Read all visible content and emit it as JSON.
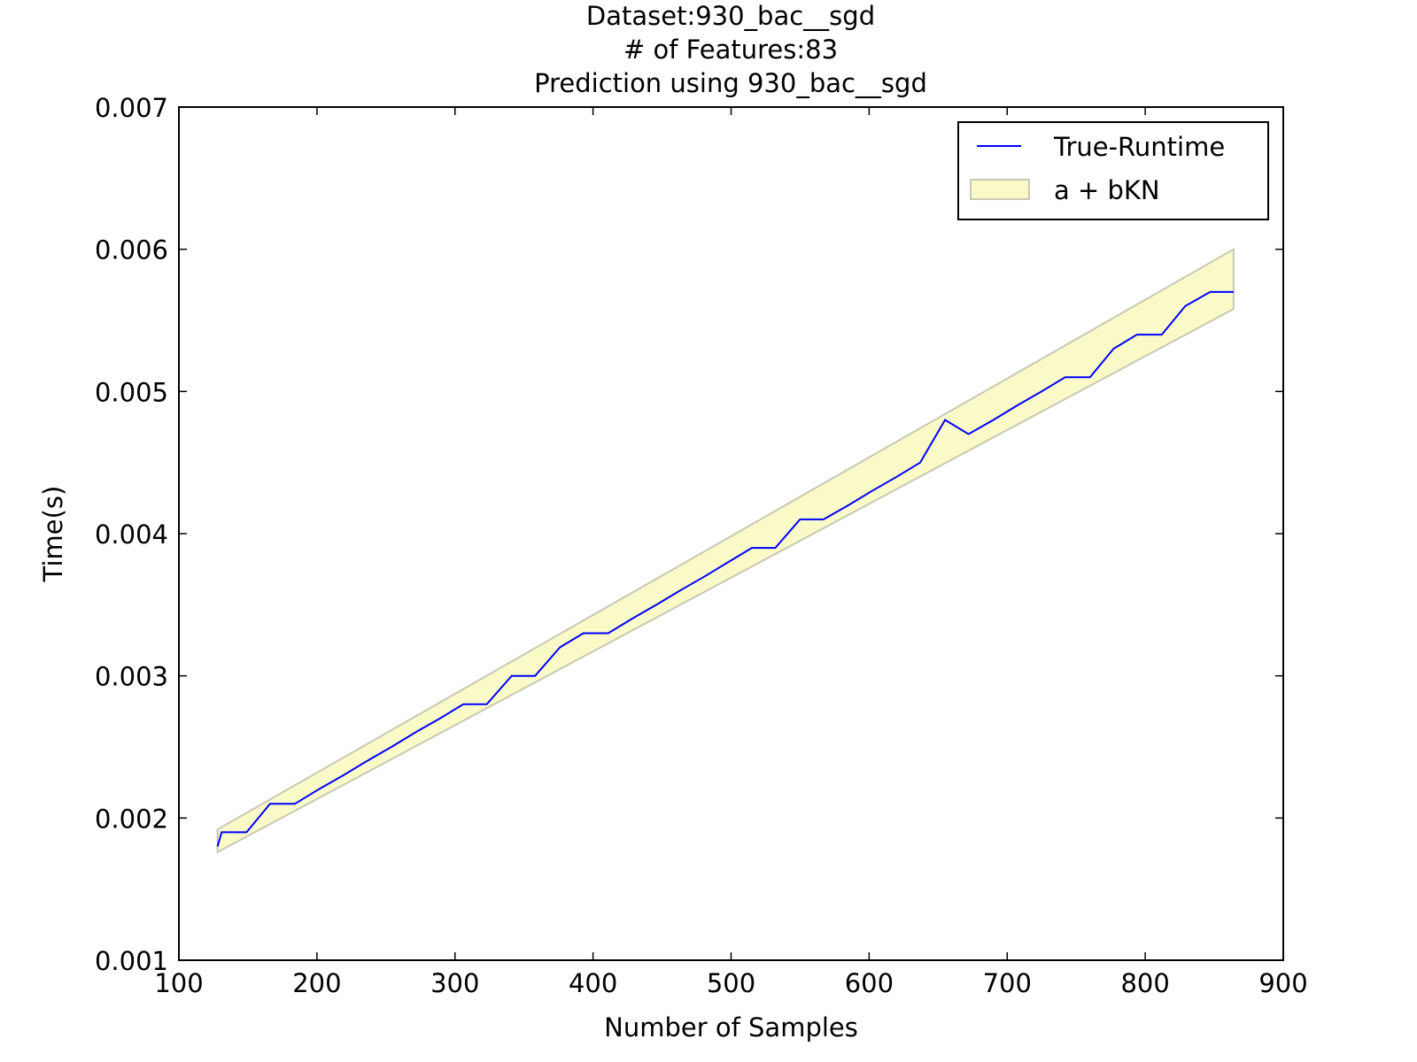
{
  "chart_data": {
    "type": "line",
    "title": [
      "Dataset:930_bac__sgd",
      "# of Features:83",
      "Prediction using 930_bac__sgd"
    ],
    "xlabel": "Number of Samples",
    "ylabel": "Time(s)",
    "xlim": [
      100,
      900
    ],
    "ylim": [
      0.001,
      0.007
    ],
    "xticks": [
      100,
      200,
      300,
      400,
      500,
      600,
      700,
      800,
      900
    ],
    "xtick_labels": [
      "100",
      "200",
      "300",
      "400",
      "500",
      "600",
      "700",
      "800",
      "900"
    ],
    "yticks": [
      0.001,
      0.002,
      0.003,
      0.004,
      0.005,
      0.006,
      0.007
    ],
    "ytick_labels": [
      "0.001",
      "0.002",
      "0.003",
      "0.004",
      "0.005",
      "0.006",
      "0.007"
    ],
    "grid": false,
    "legend_position": "top-right",
    "series": [
      {
        "name": "True-Runtime",
        "kind": "line",
        "color": "#0000ff",
        "x": [
          128,
          131,
          149,
          166,
          184,
          201,
          219,
          236,
          254,
          271,
          289,
          306,
          323,
          341,
          358,
          376,
          393,
          411,
          428,
          446,
          463,
          481,
          498,
          515,
          532,
          550,
          567,
          585,
          602,
          620,
          637,
          655,
          672,
          690,
          707,
          725,
          742,
          760,
          777,
          794,
          812,
          829,
          847,
          864
        ],
        "y": [
          0.0018,
          0.0019,
          0.0019,
          0.0021,
          0.0021,
          0.0022,
          0.0023,
          0.0024,
          0.0025,
          0.0026,
          0.0027,
          0.0028,
          0.0028,
          0.003,
          0.003,
          0.0032,
          0.0033,
          0.0033,
          0.0034,
          0.0035,
          0.0036,
          0.0037,
          0.0038,
          0.0039,
          0.0039,
          0.0041,
          0.0041,
          0.0042,
          0.0043,
          0.0044,
          0.0045,
          0.0048,
          0.0047,
          0.0048,
          0.0049,
          0.005,
          0.0051,
          0.0051,
          0.0053,
          0.0054,
          0.0054,
          0.0056,
          0.0057,
          0.0057
        ]
      },
      {
        "name": "a + bKN",
        "kind": "band",
        "fill_color": "#fafac8",
        "edge_color": "#c8c8b4",
        "x": [
          128,
          864
        ],
        "upper": [
          0.00192,
          0.006
        ],
        "lower": [
          0.00176,
          0.00558
        ]
      }
    ]
  }
}
